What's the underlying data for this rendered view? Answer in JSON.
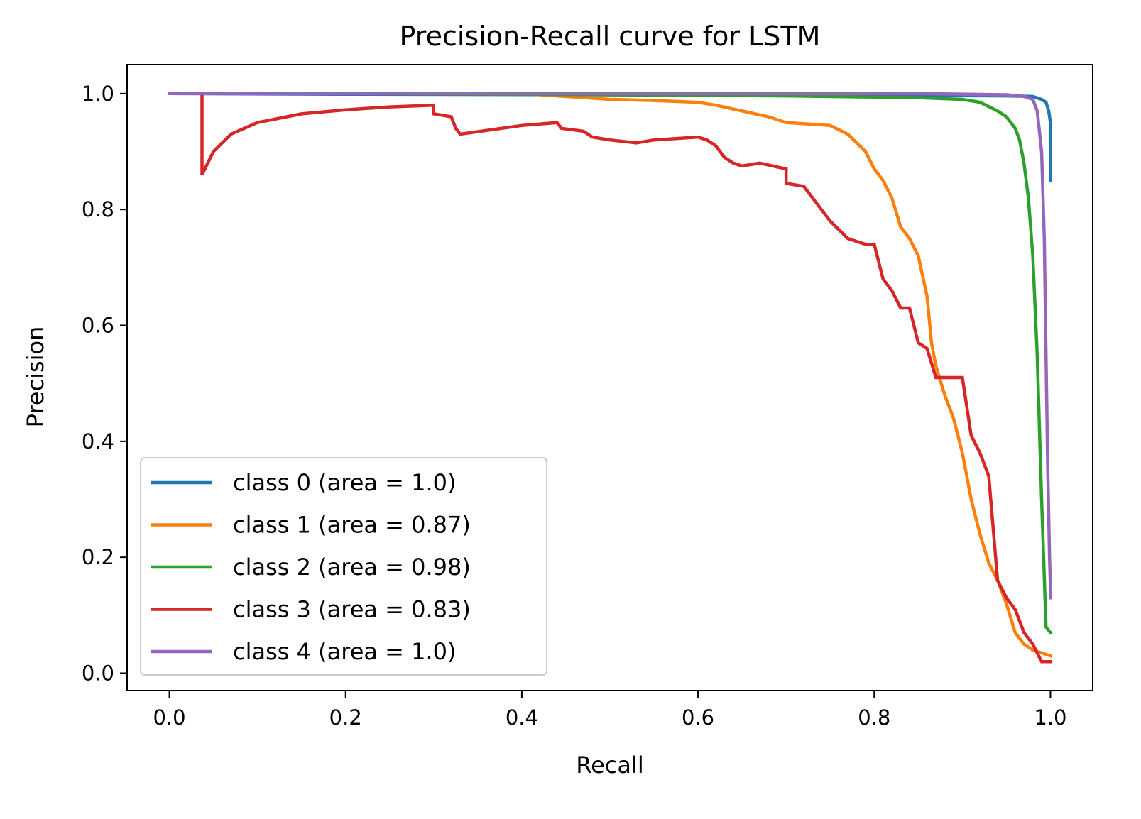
{
  "chart_data": {
    "type": "line",
    "title": "Precision-Recall curve for LSTM",
    "xlabel": "Recall",
    "ylabel": "Precision",
    "xlim": [
      -0.048,
      1.048
    ],
    "ylim": [
      -0.03,
      1.05
    ],
    "xticks": [
      0.0,
      0.2,
      0.4,
      0.6,
      0.8,
      1.0
    ],
    "xtick_labels": [
      "0.0",
      "0.2",
      "0.4",
      "0.6",
      "0.8",
      "1.0"
    ],
    "yticks": [
      0.0,
      0.2,
      0.4,
      0.6,
      0.8,
      1.0
    ],
    "ytick_labels": [
      "0.0",
      "0.2",
      "0.4",
      "0.6",
      "0.8",
      "1.0"
    ],
    "grid": false,
    "legend_position": "lower-left",
    "series": [
      {
        "name": "class 0 (area = 1.0)",
        "color": "#1f77b4",
        "x": [
          0.0,
          0.2,
          0.5,
          0.8,
          0.95,
          0.98,
          0.99,
          0.995,
          0.998,
          1.0,
          1.0,
          1.0
        ],
        "y": [
          1.0,
          0.999,
          0.998,
          0.997,
          0.996,
          0.995,
          0.99,
          0.985,
          0.97,
          0.95,
          0.9,
          0.85
        ]
      },
      {
        "name": "class 1 (area = 0.87)",
        "color": "#ff7f0e",
        "x": [
          0.0,
          0.1,
          0.2,
          0.3,
          0.4,
          0.45,
          0.5,
          0.55,
          0.6,
          0.62,
          0.65,
          0.68,
          0.7,
          0.72,
          0.75,
          0.77,
          0.79,
          0.8,
          0.81,
          0.82,
          0.83,
          0.84,
          0.85,
          0.86,
          0.865,
          0.87,
          0.88,
          0.89,
          0.9,
          0.91,
          0.92,
          0.93,
          0.94,
          0.95,
          0.96,
          0.97,
          0.98,
          0.99,
          1.0
        ],
        "y": [
          1.0,
          1.0,
          1.0,
          1.0,
          1.0,
          0.995,
          0.99,
          0.988,
          0.985,
          0.98,
          0.97,
          0.96,
          0.95,
          0.948,
          0.945,
          0.93,
          0.9,
          0.87,
          0.85,
          0.82,
          0.77,
          0.75,
          0.72,
          0.65,
          0.57,
          0.53,
          0.48,
          0.44,
          0.38,
          0.3,
          0.24,
          0.19,
          0.16,
          0.12,
          0.07,
          0.05,
          0.04,
          0.035,
          0.03
        ]
      },
      {
        "name": "class 2 (area = 0.98)",
        "color": "#2ca02c",
        "x": [
          0.0,
          0.2,
          0.5,
          0.7,
          0.85,
          0.9,
          0.92,
          0.94,
          0.95,
          0.96,
          0.965,
          0.97,
          0.975,
          0.98,
          0.985,
          0.99,
          0.995,
          1.0
        ],
        "y": [
          1.0,
          1.0,
          0.998,
          0.996,
          0.993,
          0.99,
          0.985,
          0.97,
          0.96,
          0.94,
          0.92,
          0.88,
          0.82,
          0.72,
          0.55,
          0.3,
          0.08,
          0.07
        ]
      },
      {
        "name": "class 3 (area = 0.83)",
        "color": "#d62728",
        "x": [
          0.0,
          0.037,
          0.037,
          0.05,
          0.07,
          0.1,
          0.15,
          0.2,
          0.25,
          0.3,
          0.3,
          0.32,
          0.325,
          0.33,
          0.4,
          0.44,
          0.445,
          0.47,
          0.48,
          0.5,
          0.53,
          0.55,
          0.6,
          0.61,
          0.62,
          0.63,
          0.64,
          0.65,
          0.67,
          0.7,
          0.7,
          0.72,
          0.73,
          0.74,
          0.75,
          0.77,
          0.78,
          0.79,
          0.8,
          0.81,
          0.82,
          0.83,
          0.84,
          0.85,
          0.86,
          0.87,
          0.88,
          0.89,
          0.9,
          0.91,
          0.92,
          0.93,
          0.94,
          0.95,
          0.96,
          0.97,
          0.98,
          0.99,
          1.0
        ],
        "y": [
          1.0,
          1.0,
          0.86,
          0.9,
          0.93,
          0.95,
          0.965,
          0.972,
          0.977,
          0.98,
          0.965,
          0.96,
          0.94,
          0.93,
          0.945,
          0.95,
          0.94,
          0.935,
          0.925,
          0.92,
          0.915,
          0.92,
          0.925,
          0.92,
          0.91,
          0.89,
          0.88,
          0.875,
          0.88,
          0.87,
          0.845,
          0.84,
          0.82,
          0.8,
          0.78,
          0.75,
          0.745,
          0.74,
          0.74,
          0.68,
          0.66,
          0.63,
          0.63,
          0.57,
          0.56,
          0.51,
          0.51,
          0.51,
          0.51,
          0.41,
          0.38,
          0.34,
          0.16,
          0.13,
          0.11,
          0.07,
          0.05,
          0.02,
          0.02
        ]
      },
      {
        "name": "class 4 (area = 1.0)",
        "color": "#9467bd",
        "x": [
          0.0,
          0.3,
          0.6,
          0.85,
          0.95,
          0.97,
          0.98,
          0.985,
          0.99,
          0.993,
          0.995,
          0.997,
          0.999,
          1.0,
          1.0
        ],
        "y": [
          1.0,
          1.0,
          1.0,
          1.0,
          0.998,
          0.995,
          0.99,
          0.97,
          0.9,
          0.75,
          0.55,
          0.35,
          0.2,
          0.15,
          0.13
        ]
      }
    ]
  }
}
